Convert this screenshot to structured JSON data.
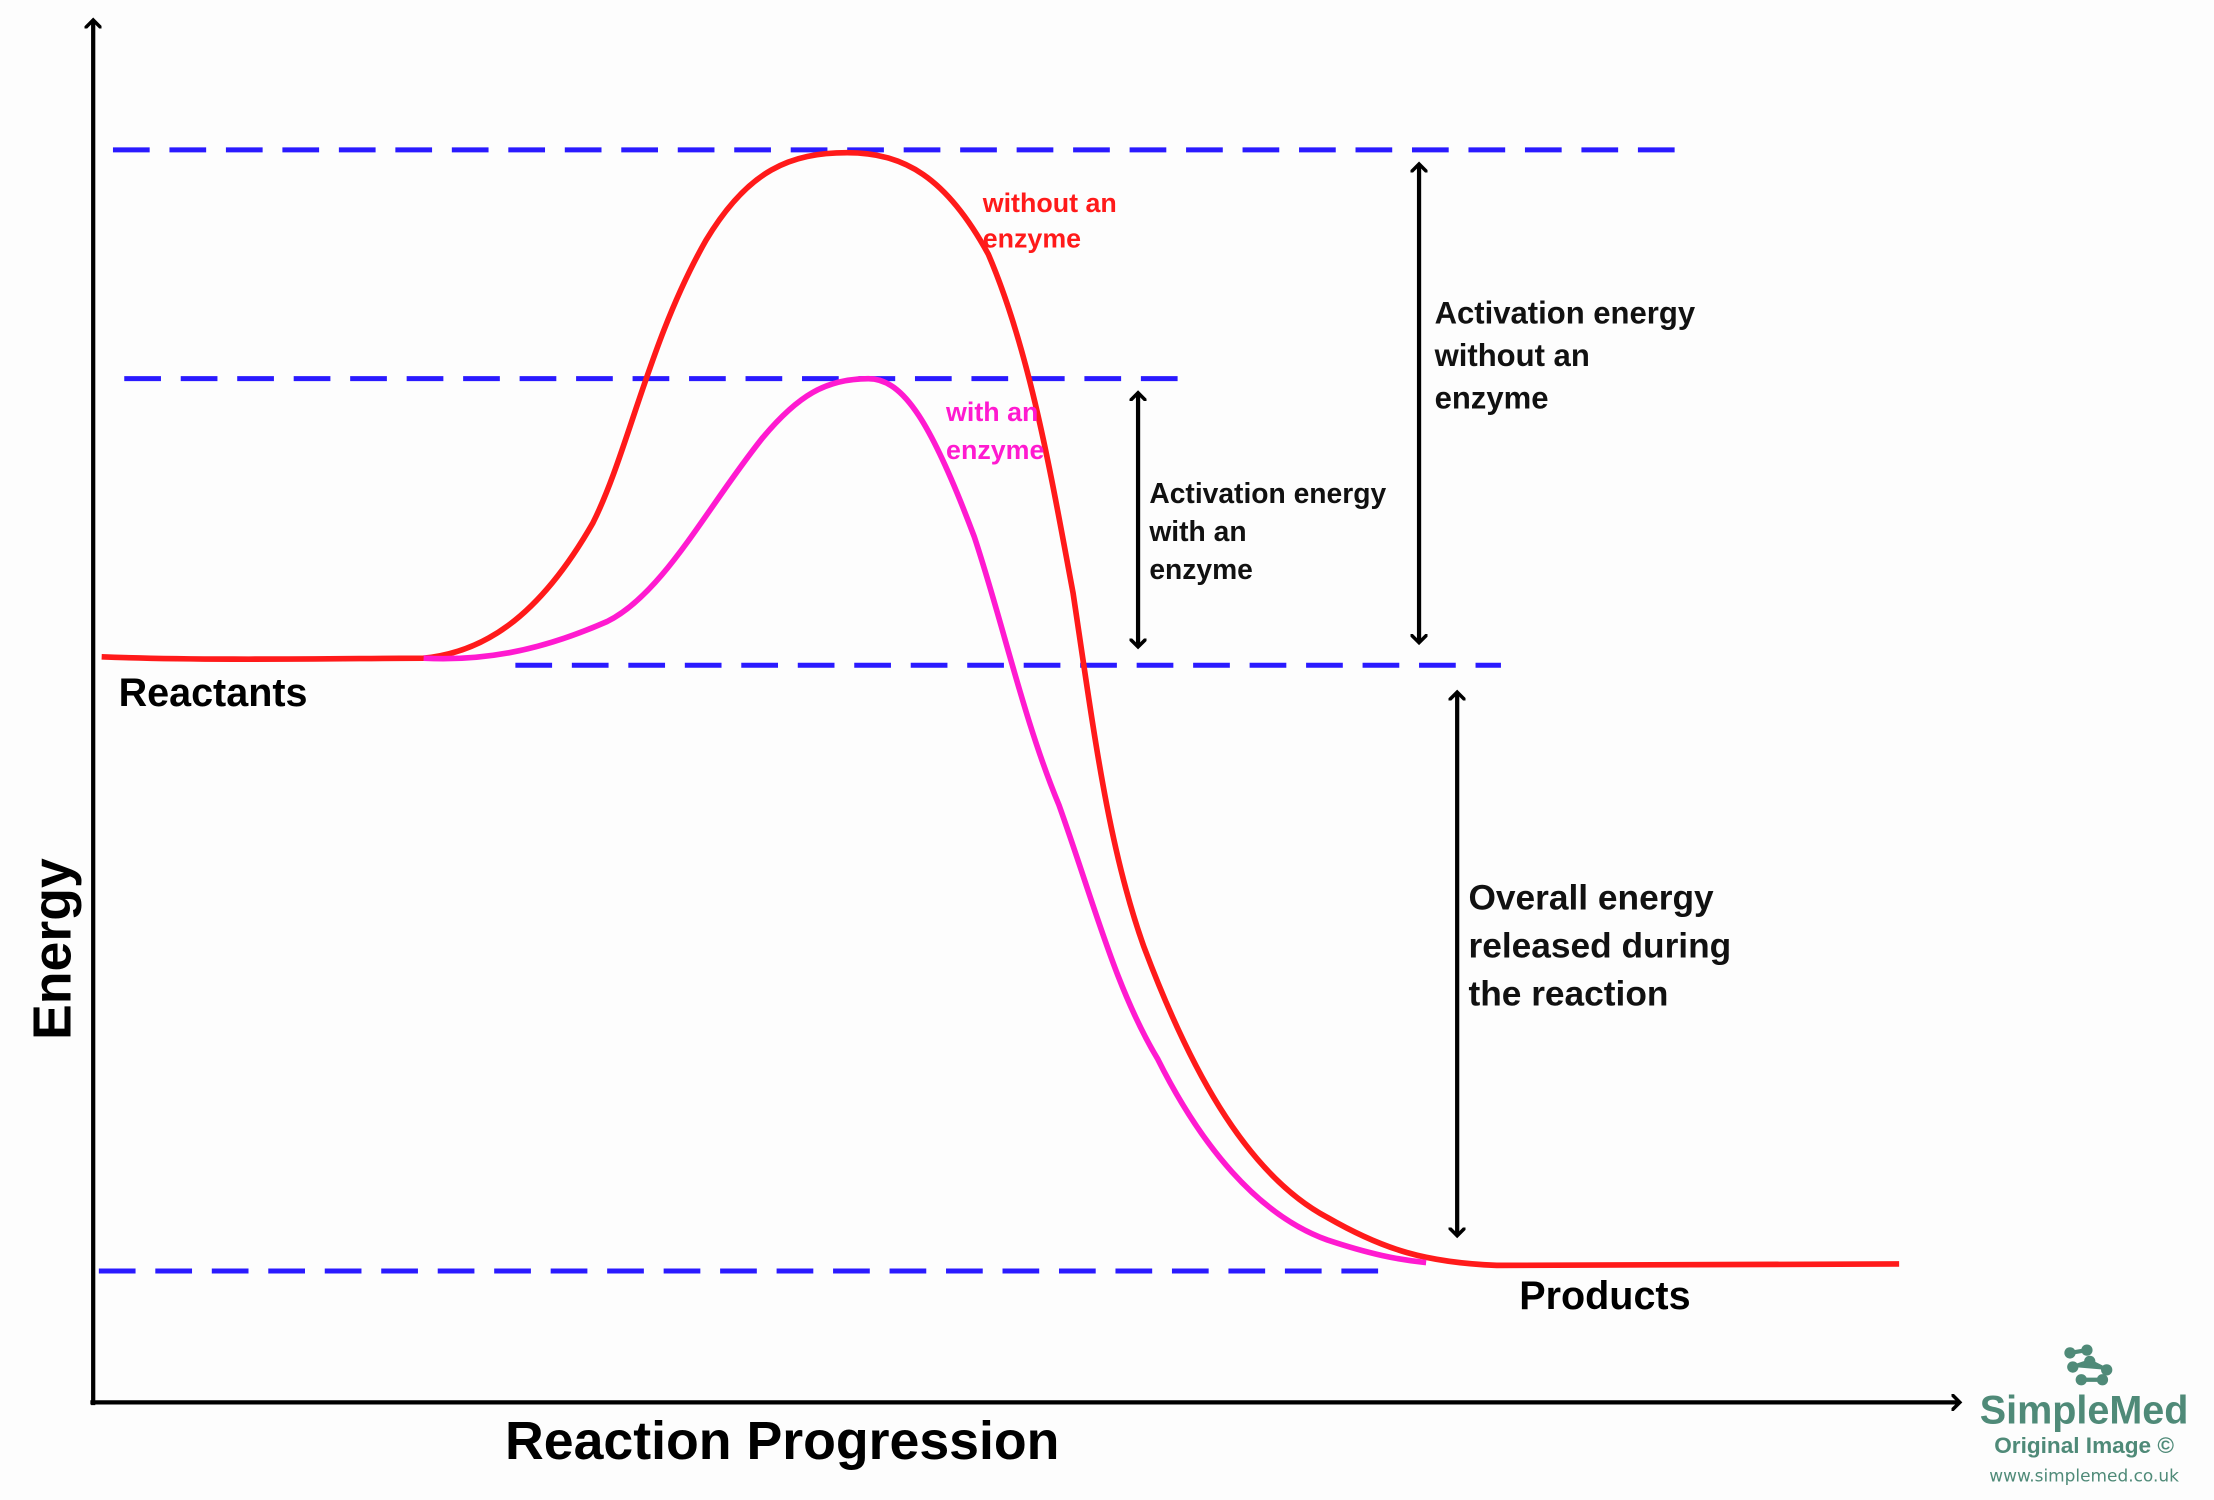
{
  "axes": {
    "y_label": "Energy",
    "x_label": "Reaction Progression"
  },
  "levels": {
    "reactants": "Reactants",
    "products": "Products"
  },
  "curves": {
    "without_enzyme": {
      "label_line1": "without an",
      "label_line2": "enzyme",
      "color": "#ff1a1a"
    },
    "with_enzyme": {
      "label_line1": "with an",
      "label_line2": "enzyme",
      "color": "#ff1ad0"
    }
  },
  "annotations": {
    "ea_with": [
      "Activation energy",
      "with an",
      "enzyme"
    ],
    "ea_without": [
      "Activation energy",
      "without an",
      "enzyme"
    ],
    "overall": [
      "Overall energy",
      "released during",
      "the reaction"
    ]
  },
  "colors": {
    "dashed_lines": "#2a1aff",
    "arrows": "#000000",
    "logo": "#4f8a78"
  },
  "logo": {
    "name": "SimpleMed",
    "subtitle": "Original Image ©",
    "url": "www.simplemed.co.uk"
  }
}
